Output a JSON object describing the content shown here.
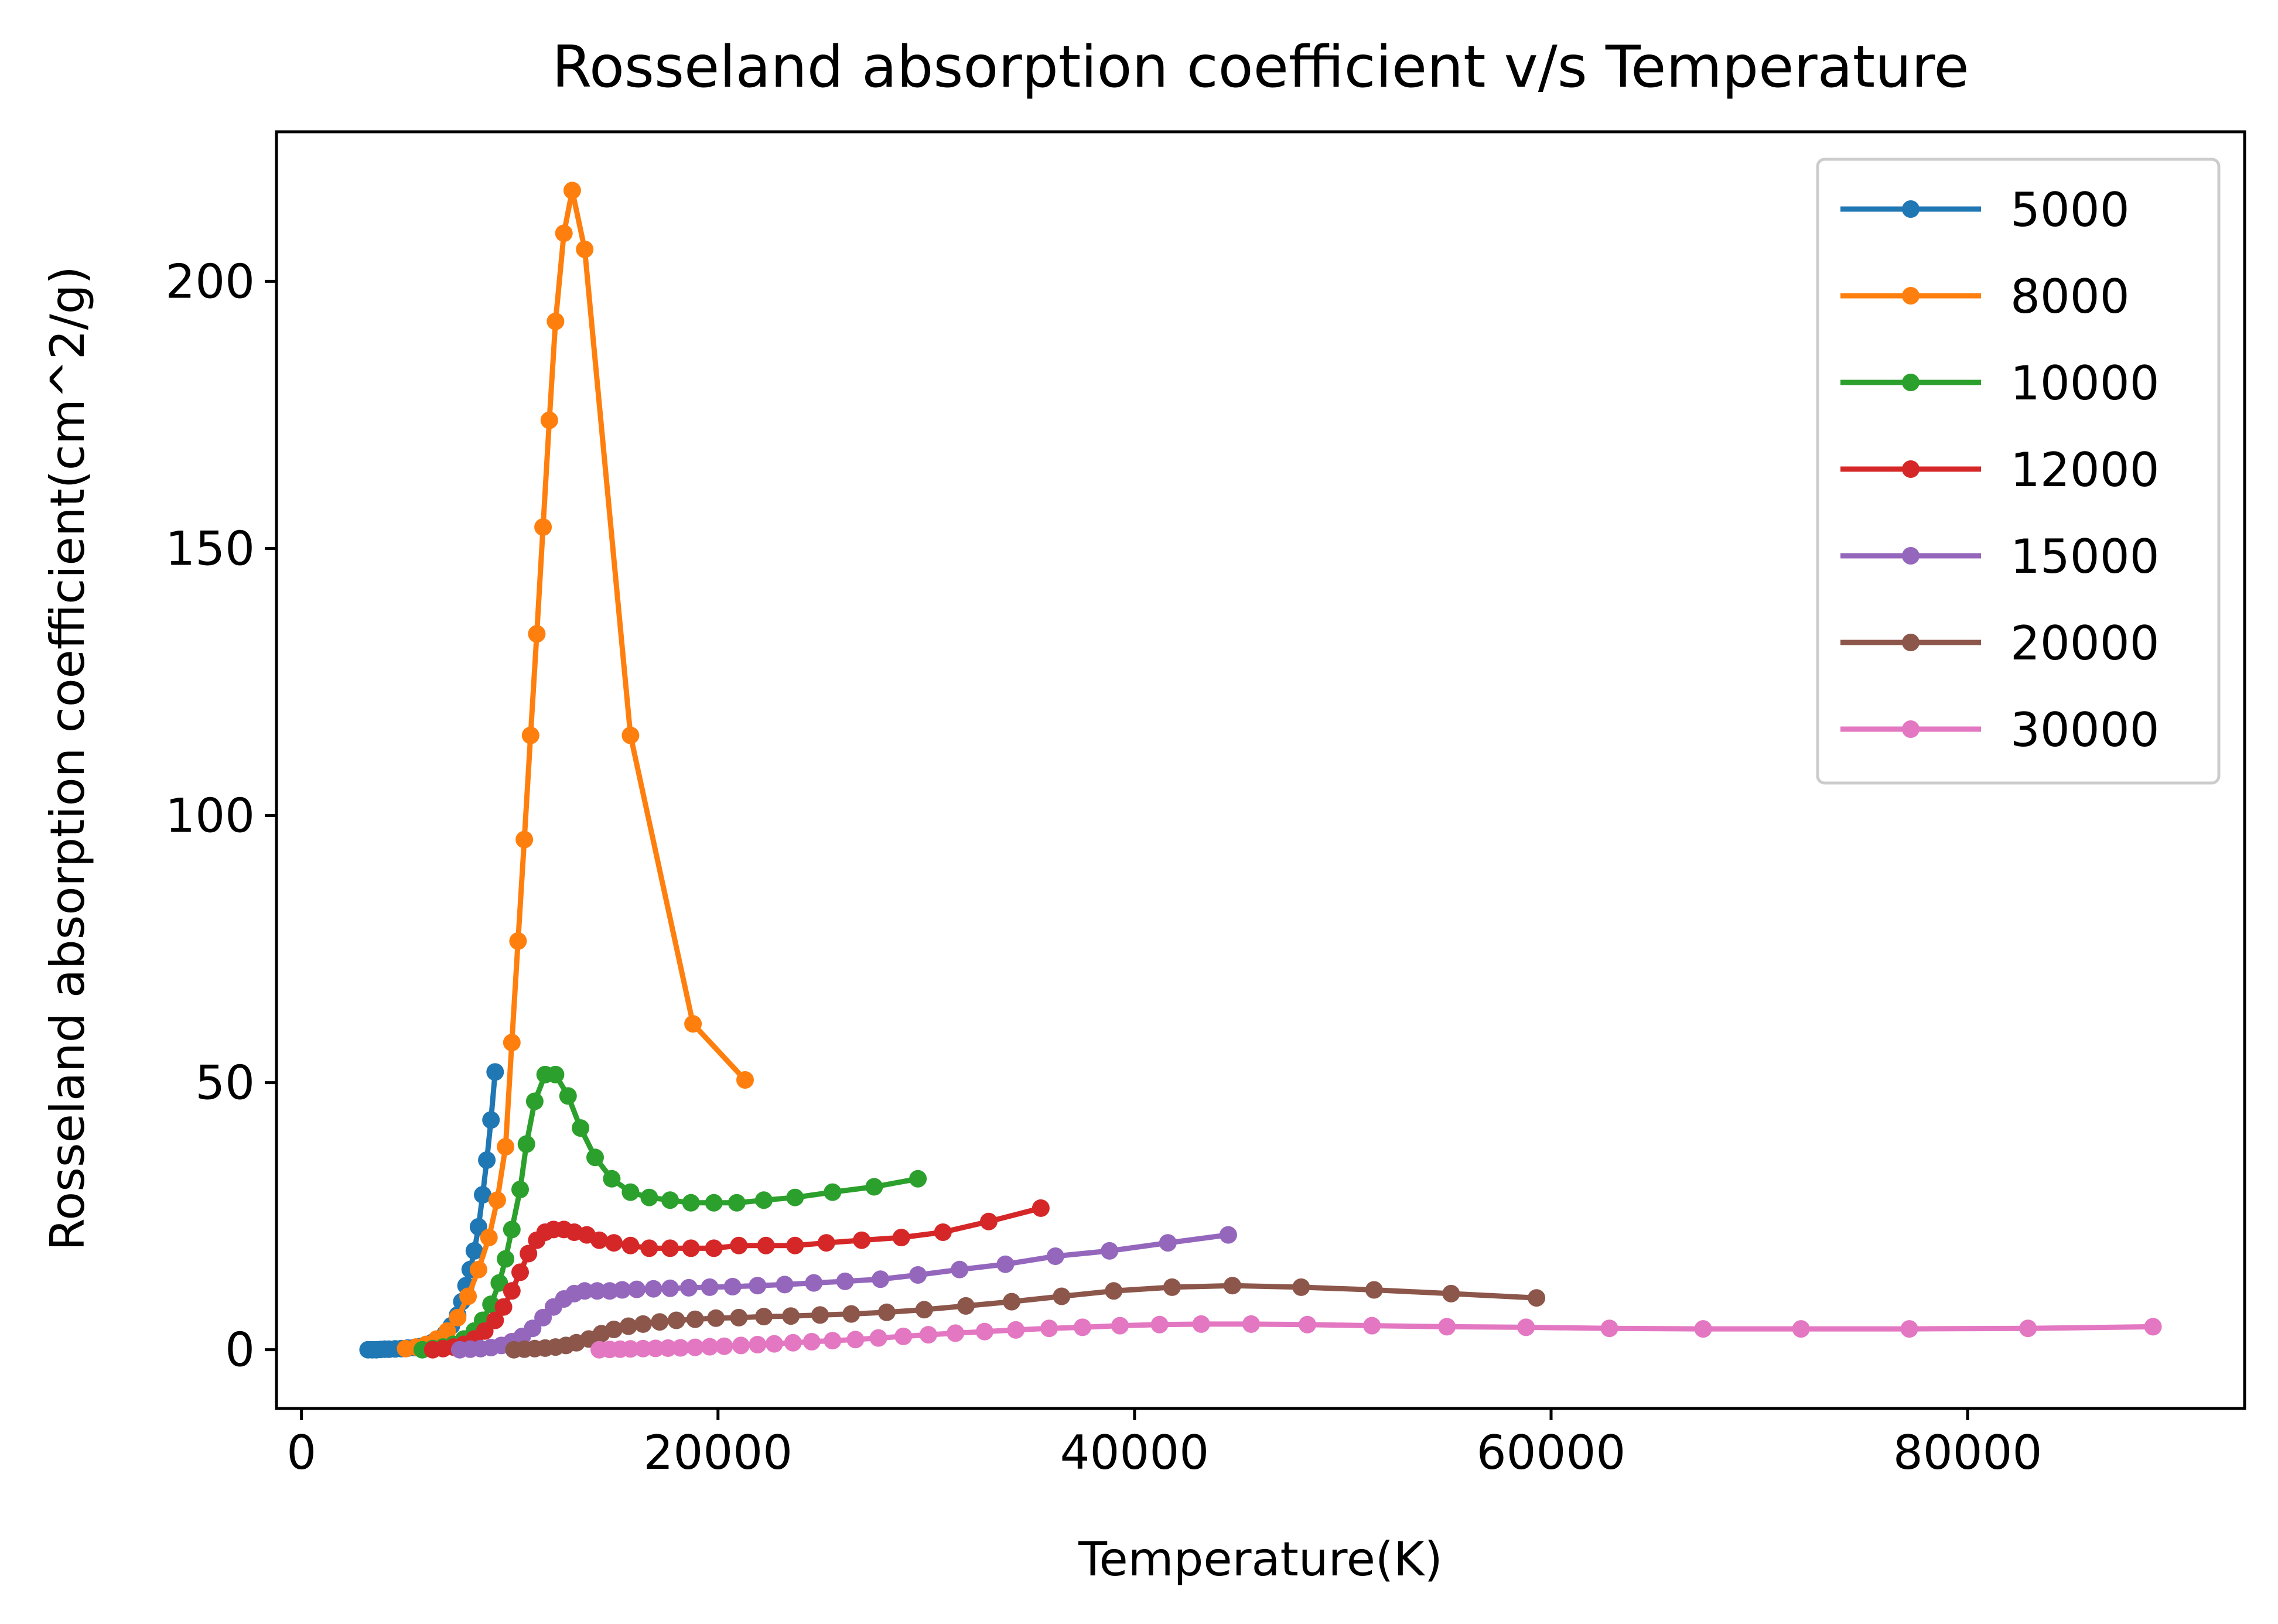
{
  "chart_data": {
    "type": "line",
    "title": "Rosseland absorption coefficient v/s Temperature",
    "xlabel": "Temperature(K)",
    "ylabel": "Rosseland absorption coefficient(cm^2/g)",
    "xlim": [
      -1200,
      93300
    ],
    "ylim": [
      -11,
      228
    ],
    "xticks": [
      0,
      20000,
      40000,
      60000,
      80000
    ],
    "xtick_labels": [
      "0",
      "20000",
      "40000",
      "60000",
      "80000"
    ],
    "yticks": [
      0,
      50,
      100,
      150,
      200
    ],
    "ytick_labels": [
      "0",
      "50",
      "100",
      "150",
      "200"
    ],
    "grid": false,
    "legend_position": "top-right",
    "marker": "circle",
    "series": [
      {
        "name": "5000",
        "color": "#1f77b4",
        "x": [
          3200,
          3400,
          3600,
          3800,
          4000,
          4200,
          4500,
          4800,
          5100,
          5400,
          5700,
          6000,
          6300,
          6600,
          6900,
          7200,
          7500,
          7700,
          7900,
          8100,
          8300,
          8500,
          8700,
          8900,
          9100,
          9300
        ],
        "y": [
          0,
          0,
          0,
          0.05,
          0.1,
          0.1,
          0.15,
          0.2,
          0.3,
          0.4,
          0.6,
          0.9,
          1.4,
          2,
          3,
          4.5,
          6.5,
          9,
          12,
          15,
          18.5,
          23,
          29,
          35.5,
          43,
          52
        ]
      },
      {
        "name": "8000",
        "color": "#ff7f0e",
        "x": [
          5000,
          5500,
          6000,
          6500,
          7000,
          7500,
          8000,
          8500,
          9000,
          9400,
          9800,
          10100,
          10400,
          10700,
          11000,
          11300,
          11600,
          11900,
          12200,
          12600,
          13000,
          13600,
          15800,
          18800,
          21300
        ],
        "y": [
          0.2,
          0.5,
          1,
          2,
          3.5,
          6,
          10,
          15,
          21,
          28,
          38,
          57.5,
          76.5,
          95.5,
          115,
          134,
          154,
          174,
          192.5,
          209,
          217,
          206,
          115,
          61,
          50.5
        ]
      },
      {
        "name": "10000",
        "color": "#2ca02c",
        "x": [
          5800,
          6300,
          6800,
          7300,
          7800,
          8300,
          8700,
          9100,
          9500,
          9800,
          10100,
          10500,
          10800,
          11200,
          11700,
          12200,
          12800,
          13400,
          14100,
          14900,
          15800,
          16700,
          17700,
          18700,
          19800,
          20900,
          22200,
          23700,
          25500,
          27500,
          29600
        ],
        "y": [
          0,
          0.2,
          0.5,
          1,
          2,
          3.5,
          5.5,
          8.5,
          12.5,
          17,
          22.5,
          30,
          38.5,
          46.5,
          51.5,
          51.5,
          47.5,
          41.5,
          36,
          32,
          29.5,
          28.5,
          28,
          27.5,
          27.5,
          27.5,
          28,
          28.5,
          29.5,
          30.5,
          32
        ]
      },
      {
        "name": "12000",
        "color": "#d62728",
        "x": [
          6300,
          6800,
          7300,
          7800,
          8300,
          8800,
          9300,
          9700,
          10100,
          10500,
          10900,
          11300,
          11700,
          12100,
          12600,
          13100,
          13700,
          14300,
          15000,
          15800,
          16700,
          17700,
          18700,
          19800,
          21000,
          22300,
          23700,
          25200,
          26900,
          28800,
          30800,
          33000,
          35500
        ],
        "y": [
          0,
          0.2,
          0.5,
          1,
          2,
          3.5,
          5.5,
          8,
          11,
          14.5,
          18,
          20.5,
          22,
          22.5,
          22.5,
          22,
          21.5,
          20.5,
          20,
          19.5,
          19,
          19,
          19,
          19,
          19.5,
          19.5,
          19.5,
          20,
          20.5,
          21,
          22,
          24,
          26.5
        ]
      },
      {
        "name": "15000",
        "color": "#9467bd",
        "x": [
          7600,
          8100,
          8600,
          9100,
          9600,
          10100,
          10600,
          11100,
          11600,
          12100,
          12600,
          13100,
          13600,
          14200,
          14800,
          15400,
          16100,
          16900,
          17700,
          18600,
          19600,
          20700,
          21900,
          23200,
          24600,
          26100,
          27800,
          29600,
          31600,
          33800,
          36200,
          38800,
          41600,
          44500
        ],
        "y": [
          0,
          0.1,
          0.2,
          0.4,
          0.8,
          1.5,
          2.5,
          4,
          6,
          8,
          9.5,
          10.5,
          11,
          11,
          11,
          11.2,
          11.3,
          11.4,
          11.5,
          11.6,
          11.7,
          11.8,
          12,
          12.2,
          12.5,
          12.8,
          13.2,
          14,
          15,
          16,
          17.5,
          18.5,
          20,
          21.5
        ]
      },
      {
        "name": "20000",
        "color": "#8c564b",
        "x": [
          10200,
          10700,
          11200,
          11700,
          12200,
          12700,
          13200,
          13800,
          14400,
          15000,
          15700,
          16400,
          17200,
          18000,
          18900,
          19900,
          21000,
          22200,
          23500,
          24900,
          26400,
          28100,
          29900,
          31900,
          34100,
          36500,
          39000,
          41800,
          44700,
          48000,
          51500,
          55200,
          59300
        ],
        "y": [
          0,
          0.1,
          0.2,
          0.3,
          0.5,
          0.8,
          1.3,
          2,
          3,
          3.8,
          4.4,
          4.8,
          5.2,
          5.5,
          5.7,
          5.9,
          6,
          6.2,
          6.3,
          6.5,
          6.7,
          7,
          7.5,
          8.2,
          9,
          10,
          11,
          11.7,
          12,
          11.7,
          11.2,
          10.5,
          9.7
        ]
      },
      {
        "name": "30000",
        "color": "#e377c2",
        "x": [
          14300,
          14800,
          15300,
          15800,
          16400,
          17000,
          17600,
          18200,
          18900,
          19600,
          20300,
          21100,
          21900,
          22700,
          23600,
          24500,
          25500,
          26600,
          27700,
          28900,
          30100,
          31400,
          32800,
          34300,
          35900,
          37500,
          39300,
          41200,
          43200,
          45600,
          48300,
          51400,
          55000,
          58800,
          62800,
          67300,
          72000,
          77200,
          82900,
          88900
        ],
        "y": [
          0,
          0.05,
          0.1,
          0.15,
          0.2,
          0.25,
          0.3,
          0.35,
          0.45,
          0.55,
          0.65,
          0.8,
          0.95,
          1.1,
          1.3,
          1.5,
          1.7,
          1.9,
          2.2,
          2.5,
          2.8,
          3.1,
          3.4,
          3.7,
          4,
          4.2,
          4.5,
          4.7,
          4.8,
          4.8,
          4.7,
          4.5,
          4.3,
          4.2,
          4,
          3.9,
          3.9,
          3.9,
          4,
          4.3
        ]
      }
    ]
  }
}
